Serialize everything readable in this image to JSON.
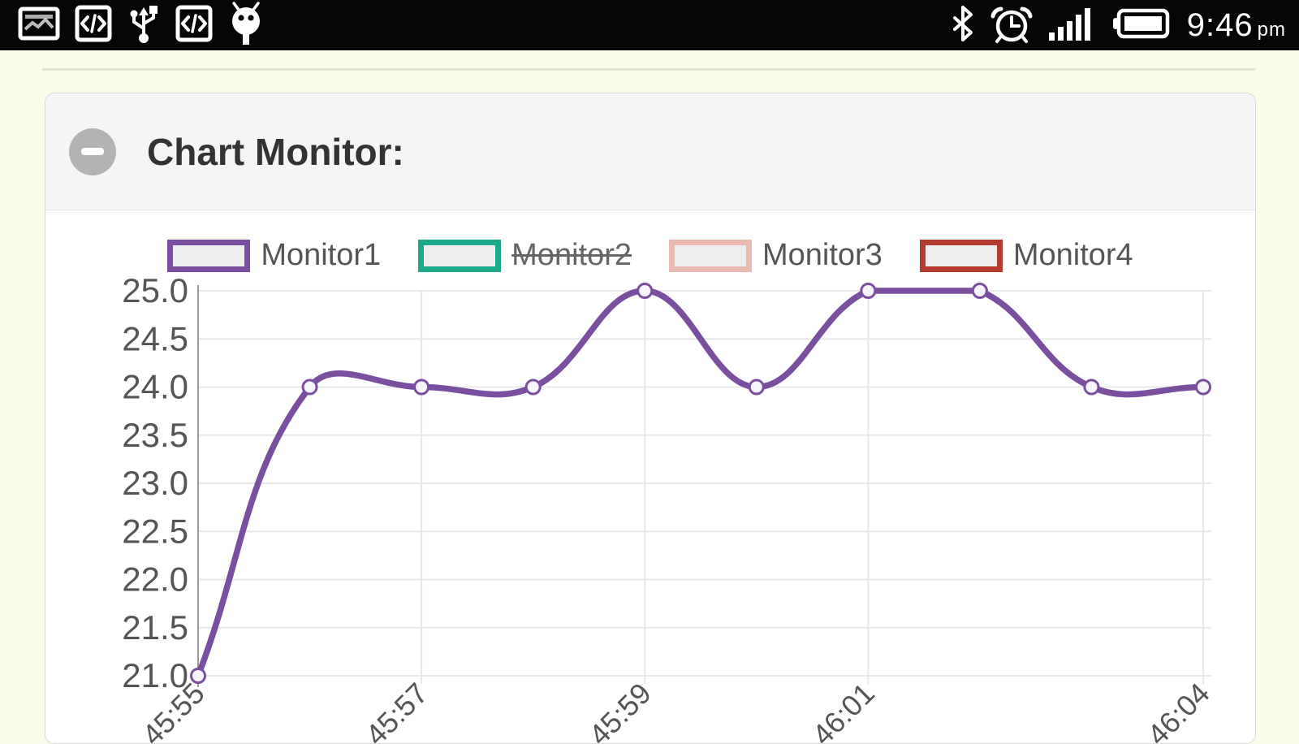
{
  "status_bar": {
    "time": "9:46",
    "time_suffix": "pm",
    "left_icons": [
      "screenshot",
      "usb-debugging",
      "usb",
      "usb-debugging",
      "android"
    ],
    "right_icons": [
      "bluetooth",
      "alarm",
      "signal",
      "battery"
    ]
  },
  "panel": {
    "title": "Chart Monitor:",
    "collapse_button": "minus"
  },
  "chart_data": {
    "type": "line",
    "title": "",
    "num_points": 10,
    "x_tick_labels": [
      "45:55",
      "45:57",
      "45:59",
      "46:01",
      "46:04"
    ],
    "x_tick_point_indices": [
      0,
      2,
      4,
      6,
      9
    ],
    "ylim": [
      21.0,
      25.0
    ],
    "y_ticks": [
      "25.0",
      "24.5",
      "24.0",
      "23.5",
      "23.0",
      "22.5",
      "22.0",
      "21.5",
      "21.0"
    ],
    "grid": true,
    "legend_position": "top",
    "series": [
      {
        "name": "Monitor1",
        "color": "#7a4fa0",
        "hidden": false,
        "values": [
          21,
          24,
          24,
          24,
          25,
          24,
          25,
          25,
          24,
          24
        ]
      },
      {
        "name": "Monitor2",
        "color": "#1ea98c",
        "hidden": true,
        "values": null
      },
      {
        "name": "Monitor3",
        "color": "#e8bab1",
        "hidden": false,
        "values": null
      },
      {
        "name": "Monitor4",
        "color": "#b43b2e",
        "hidden": false,
        "values": null
      }
    ],
    "axis_text_color": "#555555",
    "grid_color": "#e8e8e8",
    "axis_line_color": "#9a9a9a",
    "legend_swatch_fill": "#ededed",
    "point_fill": "#f7f5fa"
  }
}
